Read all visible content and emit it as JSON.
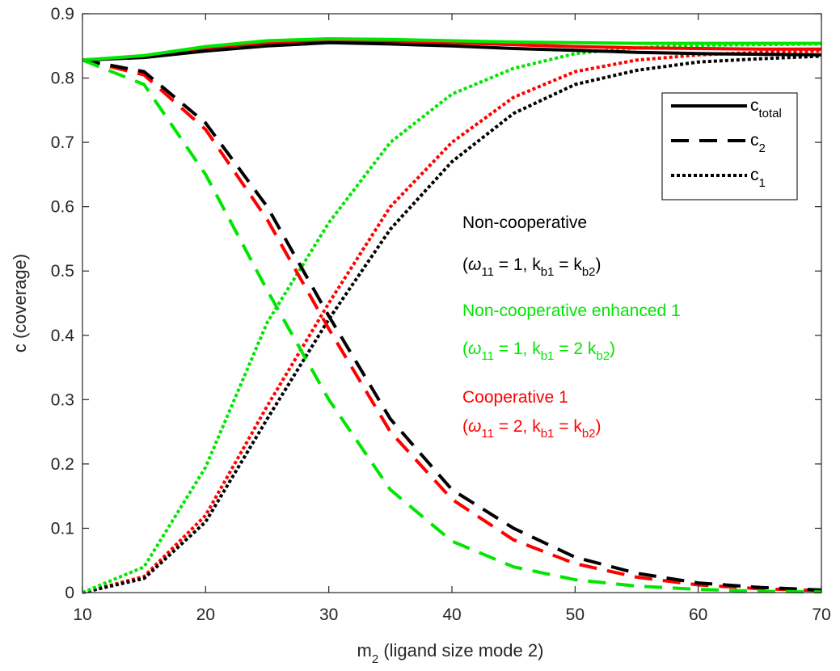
{
  "chart_data": {
    "type": "line",
    "xlabel": {
      "main": "m",
      "sub": "2",
      "rest": " (ligand size mode 2)"
    },
    "ylabel": "c (coverage)",
    "xlim": [
      10,
      70
    ],
    "ylim": [
      0,
      0.9
    ],
    "x_ticks": [
      10,
      20,
      30,
      40,
      50,
      60,
      70
    ],
    "y_ticks": [
      0,
      0.1,
      0.2,
      0.3,
      0.4,
      0.5,
      0.6,
      0.7,
      0.8,
      0.9
    ],
    "x_tick_labels": [
      "10",
      "20",
      "30",
      "40",
      "50",
      "60",
      "70"
    ],
    "y_tick_labels": [
      "0",
      "0.1",
      "0.2",
      "0.3",
      "0.4",
      "0.5",
      "0.6",
      "0.7",
      "0.8",
      "0.9"
    ],
    "grid": false,
    "legend_position": "top-right",
    "legend": [
      {
        "style": "solid",
        "main": "c",
        "sub": "total"
      },
      {
        "style": "dashed",
        "main": "c",
        "sub": "2"
      },
      {
        "style": "dotted",
        "main": "c",
        "sub": "1"
      }
    ],
    "x": [
      10,
      15,
      20,
      25,
      30,
      35,
      40,
      45,
      50,
      55,
      60,
      65,
      70
    ],
    "cases": [
      {
        "color": "#000000",
        "title": "Non-cooperative",
        "params": {
          "p1": "(",
          "omega": "ω",
          "s1": "11",
          "p2": " = 1, k",
          "s2": "b1",
          "p3": " = k",
          "s3": "b2",
          "p4": ")"
        },
        "c_total": [
          0.828,
          0.832,
          0.842,
          0.85,
          0.855,
          0.853,
          0.85,
          0.846,
          0.843,
          0.84,
          0.838,
          0.837,
          0.836
        ],
        "c2": [
          0.828,
          0.81,
          0.73,
          0.6,
          0.43,
          0.27,
          0.16,
          0.1,
          0.055,
          0.03,
          0.015,
          0.008,
          0.004
        ],
        "c1": [
          0.0,
          0.022,
          0.11,
          0.27,
          0.425,
          0.565,
          0.67,
          0.745,
          0.79,
          0.812,
          0.825,
          0.83,
          0.834
        ]
      },
      {
        "color": "#00e600",
        "title": "Non-cooperative enhanced 1",
        "params": {
          "p1": "(",
          "omega": "ω",
          "s1": "11",
          "p2": " = 1, k",
          "s2": "b1",
          "p3": " = 2 k",
          "s3": "b2",
          "p4": ")"
        },
        "c_total": [
          0.828,
          0.835,
          0.849,
          0.858,
          0.861,
          0.86,
          0.858,
          0.856,
          0.855,
          0.854,
          0.854,
          0.854,
          0.854
        ],
        "c2": [
          0.828,
          0.79,
          0.65,
          0.47,
          0.3,
          0.16,
          0.08,
          0.04,
          0.02,
          0.01,
          0.005,
          0.002,
          0.001
        ],
        "c1": [
          0.0,
          0.04,
          0.195,
          0.42,
          0.575,
          0.7,
          0.775,
          0.815,
          0.838,
          0.847,
          0.851,
          0.852,
          0.853
        ]
      },
      {
        "color": "#ff0000",
        "title": "Cooperative 1",
        "params": {
          "p1": "(",
          "omega": "ω",
          "s1": "11",
          "p2": " = 2, k",
          "s2": "b1",
          "p3": " = k",
          "s3": "b2",
          "p4": ")"
        },
        "c_total": [
          0.828,
          0.833,
          0.845,
          0.854,
          0.858,
          0.857,
          0.855,
          0.852,
          0.849,
          0.847,
          0.846,
          0.845,
          0.845
        ],
        "c2": [
          0.828,
          0.805,
          0.72,
          0.58,
          0.41,
          0.25,
          0.145,
          0.082,
          0.045,
          0.024,
          0.012,
          0.006,
          0.003
        ],
        "c1": [
          0.0,
          0.025,
          0.12,
          0.29,
          0.45,
          0.6,
          0.7,
          0.77,
          0.81,
          0.828,
          0.836,
          0.84,
          0.842
        ]
      }
    ]
  }
}
